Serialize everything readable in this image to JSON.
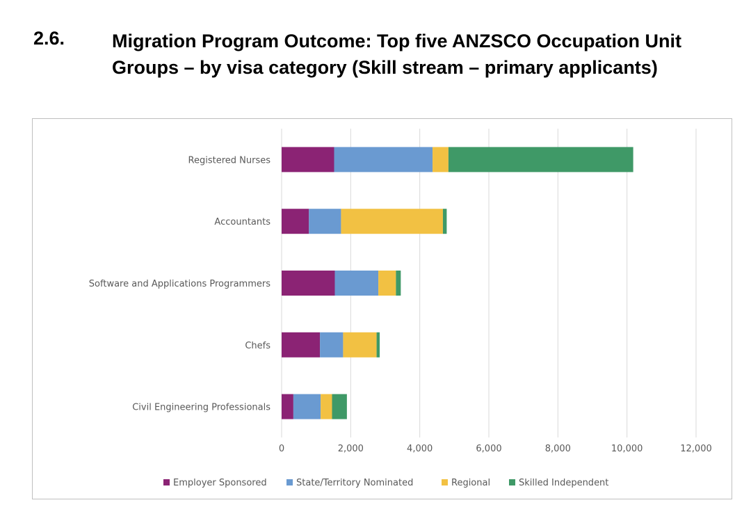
{
  "header": {
    "number": "2.6.",
    "title": "Migration Program Outcome: Top five ANZSCO Occupation Unit Groups – by visa category (Skill stream – primary applicants)"
  },
  "chart_data": {
    "type": "bar",
    "orientation": "horizontal",
    "stacked": true,
    "categories": [
      "Registered Nurses",
      "Accountants",
      "Software and Applications Programmers",
      "Chefs",
      "Civil Engineering Professionals"
    ],
    "series": [
      {
        "name": "Employer Sponsored",
        "color": "#8B2374",
        "values": [
          1520,
          790,
          1540,
          1110,
          340
        ]
      },
      {
        "name": "State/Territory Nominated",
        "color": "#6A9AD1",
        "values": [
          2850,
          930,
          1260,
          670,
          790
        ]
      },
      {
        "name": "Regional",
        "color": "#F2C143",
        "values": [
          460,
          2950,
          510,
          970,
          330
        ]
      },
      {
        "name": "Skilled Independent",
        "color": "#3F9967",
        "values": [
          5350,
          110,
          140,
          90,
          430
        ]
      }
    ],
    "xlim": [
      0,
      12000
    ],
    "xticks": [
      0,
      2000,
      4000,
      6000,
      8000,
      10000,
      12000
    ],
    "xtick_labels": [
      "0",
      "2,000",
      "4,000",
      "6,000",
      "8,000",
      "10,000",
      "12,000"
    ],
    "grid": "vertical",
    "legend_position": "bottom"
  }
}
